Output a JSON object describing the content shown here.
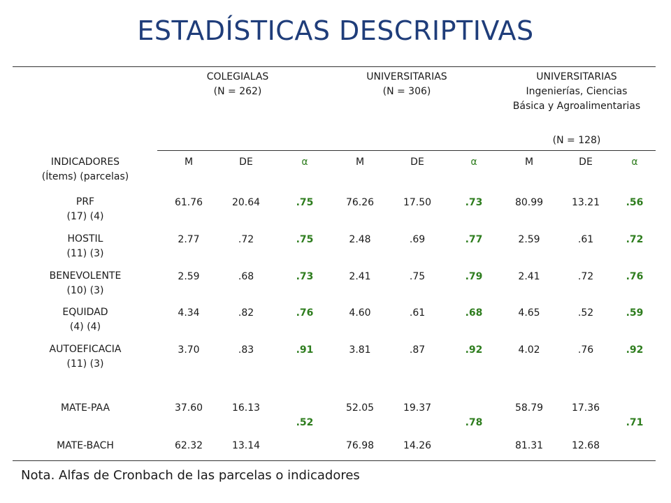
{
  "title": "ESTADÍSTICAS DESCRIPTIVAS",
  "groups": [
    {
      "lines": [
        "COLEGIALAS",
        "(N = 262)"
      ]
    },
    {
      "lines": [
        "UNIVERSITARIAS",
        "(N = 306)"
      ]
    },
    {
      "lines": [
        "UNIVERSITARIAS",
        "Ingenierías, Ciencias",
        "Básica y Agroalimentarias"
      ],
      "n": "(N = 128)"
    }
  ],
  "indicator_header": [
    "INDICADORES",
    "(Ítems) (parcelas)"
  ],
  "columns": [
    "M",
    "DE",
    "α",
    "M",
    "DE",
    "α",
    "M",
    "DE",
    "α"
  ],
  "rows": [
    {
      "name": "PRF",
      "sub": "(17) (4)",
      "values": [
        "61.76",
        "20.64",
        ".75",
        "76.26",
        "17.50",
        ".73",
        "80.99",
        "13.21",
        ".56"
      ]
    },
    {
      "name": "HOSTIL",
      "sub": "(11) (3)",
      "values": [
        "2.77",
        ".72",
        ".75",
        "2.48",
        ".69",
        ".77",
        "2.59",
        ".61",
        ".72"
      ]
    },
    {
      "name": "BENEVOLENTE",
      "sub": "(10) (3)",
      "values": [
        "2.59",
        ".68",
        ".73",
        "2.41",
        ".75",
        ".79",
        "2.41",
        ".72",
        ".76"
      ]
    },
    {
      "name": "EQUIDAD",
      "sub": "(4) (4)",
      "values": [
        "4.34",
        ".82",
        ".76",
        "4.60",
        ".61",
        ".68",
        "4.65",
        ".52",
        ".59"
      ]
    },
    {
      "name": "AUTOEFICACIA",
      "sub": "(11) (3)",
      "values": [
        "3.70",
        ".83",
        ".91",
        "3.81",
        ".87",
        ".92",
        "4.02",
        ".76",
        ".92"
      ]
    }
  ],
  "mate": {
    "rows": [
      {
        "name": "MATE-PAA",
        "values": [
          "37.60",
          "16.13",
          "52.05",
          "19.37",
          "58.79",
          "17.36"
        ]
      },
      {
        "name": "MATE-BACH",
        "values": [
          "62.32",
          "13.14",
          "76.98",
          "14.26",
          "81.31",
          "12.68"
        ]
      }
    ],
    "alphas": [
      ".52",
      ".78",
      ".71"
    ]
  },
  "note": "Nota. Alfas de Cronbach de las parcelas o indicadores"
}
